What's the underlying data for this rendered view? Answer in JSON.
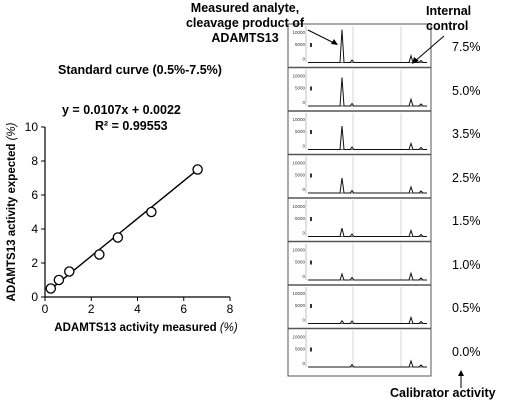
{
  "chart_data": [
    {
      "type": "scatter",
      "title": "Standard curve (0.5%-7.5%)",
      "equation": "y = 0.0107x + 0.0022",
      "r_squared": "R² = 0.99553",
      "xlabel": "ADAMTS13 activity measured",
      "xlabel_unit": "(%)",
      "ylabel": "ADAMTS13 activity expected",
      "ylabel_unit": "(%)",
      "xlim": [
        0,
        8
      ],
      "ylim": [
        0,
        10
      ],
      "x_ticks": [
        "0",
        "2",
        "4",
        "6",
        "8"
      ],
      "y_ticks": [
        "0",
        "2",
        "4",
        "6",
        "8",
        "10"
      ],
      "grid": false,
      "points": [
        {
          "x": 0.25,
          "y": 0.5
        },
        {
          "x": 0.6,
          "y": 1.0
        },
        {
          "x": 1.05,
          "y": 1.5
        },
        {
          "x": 2.35,
          "y": 2.5
        },
        {
          "x": 3.15,
          "y": 3.5
        },
        {
          "x": 4.6,
          "y": 5.0
        },
        {
          "x": 6.6,
          "y": 7.5
        }
      ],
      "trendline": {
        "x": [
          0.1,
          6.65
        ],
        "y": [
          0.3,
          7.55
        ]
      }
    },
    {
      "type": "line",
      "description_labels": {
        "analyte": "Measured analyte, cleavage product of ADAMTS13",
        "internal_control": "Internal control",
        "calibrator": "Calibrator activity"
      },
      "axis_ticks": [
        "10000",
        "5000",
        "0"
      ],
      "panels": [
        {
          "label": "7.5%",
          "peak": 0.98,
          "control": 0.2
        },
        {
          "label": "5.0%",
          "peak": 0.85,
          "control": 0.2
        },
        {
          "label": "3.5%",
          "peak": 0.7,
          "control": 0.18
        },
        {
          "label": "2.5%",
          "peak": 0.45,
          "control": 0.18
        },
        {
          "label": "1.5%",
          "peak": 0.25,
          "control": 0.18
        },
        {
          "label": "1.0%",
          "peak": 0.18,
          "control": 0.2
        },
        {
          "label": "0.5%",
          "peak": 0.08,
          "control": 0.18
        },
        {
          "label": "0.0%",
          "peak": 0.0,
          "control": 0.18
        }
      ]
    }
  ]
}
